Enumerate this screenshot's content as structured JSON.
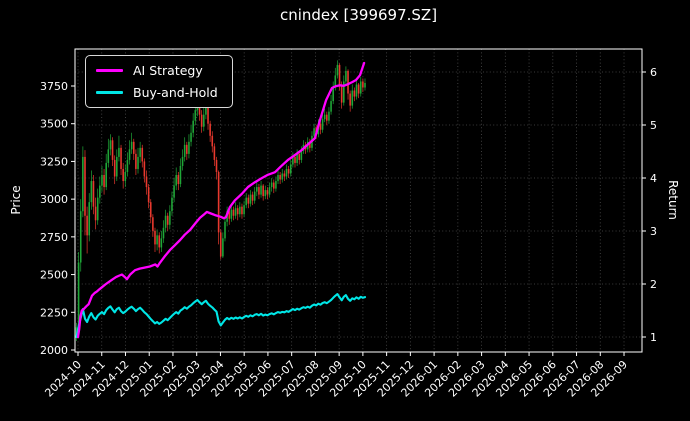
{
  "title": "cnindex [399697.SZ]",
  "legend": {
    "items": [
      {
        "label": "AI Strategy",
        "color": "#ff00ff"
      },
      {
        "label": "Buy-and-Hold",
        "color": "#00e6e6"
      }
    ]
  },
  "axes": {
    "ylabel_left": "Price",
    "ylabel_right": "Return"
  },
  "chart_data": {
    "type": "candlestick+line",
    "title": "cnindex [399697.SZ]",
    "xlabel": "",
    "ylabel_left": "Price",
    "ylabel_right": "Return",
    "grid": true,
    "background": "#000000",
    "text_color": "#ffffff",
    "up_color": "#1fa637",
    "down_color": "#e8392e",
    "price_ticks": [
      2000,
      2250,
      2500,
      2750,
      3000,
      3250,
      3500,
      3750
    ],
    "price_range": [
      1988,
      3996
    ],
    "return_ticks": [
      1,
      2,
      3,
      4,
      5,
      6
    ],
    "return_range": [
      0.72,
      6.43
    ],
    "x_tick_labels": [
      "2024-10",
      "2024-11",
      "2024-12",
      "2025-01",
      "2025-02",
      "2025-03",
      "2025-04",
      "2025-05",
      "2025-06",
      "2025-07",
      "2025-08",
      "2025-09",
      "2025-10",
      "2025-11",
      "2025-12",
      "2026-01",
      "2026-02",
      "2026-03",
      "2026-04",
      "2026-05",
      "2026-06",
      "2026-07",
      "2026-08",
      "2026-09"
    ],
    "data_span_note": "candles cover 2024-10 through mid 2025-10; rest of axis is empty",
    "candles_ohlc": [
      [
        2080,
        2180,
        2060,
        2150
      ],
      [
        2150,
        2650,
        2120,
        2580
      ],
      [
        2580,
        3000,
        2520,
        2920
      ],
      [
        2920,
        3350,
        2880,
        3280
      ],
      [
        3280,
        3325,
        2760,
        2890
      ],
      [
        2890,
        2950,
        2640,
        2760
      ],
      [
        2760,
        3040,
        2720,
        2980
      ],
      [
        2980,
        3190,
        2930,
        3120
      ],
      [
        3120,
        3160,
        2900,
        2950
      ],
      [
        2950,
        3010,
        2800,
        2860
      ],
      [
        2860,
        3070,
        2830,
        3010
      ],
      [
        3010,
        3150,
        2970,
        3090
      ],
      [
        3090,
        3220,
        3050,
        3160
      ],
      [
        3160,
        3200,
        3030,
        3080
      ],
      [
        3080,
        3300,
        3060,
        3240
      ],
      [
        3240,
        3400,
        3210,
        3330
      ],
      [
        3330,
        3430,
        3290,
        3390
      ],
      [
        3390,
        3410,
        3220,
        3260
      ],
      [
        3260,
        3290,
        3100,
        3150
      ],
      [
        3150,
        3330,
        3120,
        3280
      ],
      [
        3280,
        3420,
        3250,
        3340
      ],
      [
        3340,
        3360,
        3160,
        3200
      ],
      [
        3200,
        3240,
        3070,
        3120
      ],
      [
        3120,
        3230,
        3080,
        3180
      ],
      [
        3180,
        3310,
        3150,
        3260
      ],
      [
        3260,
        3390,
        3230,
        3330
      ],
      [
        3330,
        3440,
        3300,
        3380
      ],
      [
        3380,
        3400,
        3260,
        3300
      ],
      [
        3300,
        3330,
        3160,
        3200
      ],
      [
        3200,
        3340,
        3170,
        3280
      ],
      [
        3280,
        3380,
        3240,
        3340
      ],
      [
        3340,
        3360,
        3210,
        3250
      ],
      [
        3250,
        3270,
        3110,
        3150
      ],
      [
        3150,
        3190,
        3030,
        3080
      ],
      [
        3080,
        3100,
        2940,
        2980
      ],
      [
        2980,
        3000,
        2840,
        2880
      ],
      [
        2880,
        2900,
        2750,
        2790
      ],
      [
        2790,
        2810,
        2650,
        2700
      ],
      [
        2700,
        2800,
        2660,
        2760
      ],
      [
        2760,
        2780,
        2640,
        2680
      ],
      [
        2680,
        2790,
        2650,
        2740
      ],
      [
        2740,
        2860,
        2710,
        2810
      ],
      [
        2810,
        2930,
        2780,
        2890
      ],
      [
        2890,
        2910,
        2790,
        2830
      ],
      [
        2830,
        2960,
        2800,
        2920
      ],
      [
        2920,
        3050,
        2890,
        3010
      ],
      [
        3010,
        3140,
        2980,
        3090
      ],
      [
        3090,
        3210,
        3060,
        3160
      ],
      [
        3160,
        3180,
        3060,
        3100
      ],
      [
        3100,
        3270,
        3080,
        3220
      ],
      [
        3220,
        3330,
        3190,
        3280
      ],
      [
        3280,
        3410,
        3250,
        3360
      ],
      [
        3360,
        3380,
        3260,
        3300
      ],
      [
        3300,
        3430,
        3270,
        3380
      ],
      [
        3380,
        3490,
        3350,
        3440
      ],
      [
        3440,
        3570,
        3410,
        3520
      ],
      [
        3520,
        3640,
        3490,
        3590
      ],
      [
        3590,
        3660,
        3550,
        3650
      ],
      [
        3650,
        3655,
        3520,
        3560
      ],
      [
        3560,
        3590,
        3440,
        3480
      ],
      [
        3480,
        3610,
        3450,
        3560
      ],
      [
        3560,
        3650,
        3530,
        3620
      ],
      [
        3620,
        3630,
        3460,
        3500
      ],
      [
        3500,
        3520,
        3380,
        3420
      ],
      [
        3420,
        3450,
        3310,
        3350
      ],
      [
        3350,
        3370,
        3220,
        3260
      ],
      [
        3260,
        3280,
        3130,
        3180
      ],
      [
        3180,
        3190,
        2700,
        2780
      ],
      [
        2780,
        2800,
        2600,
        2620
      ],
      [
        2620,
        2780,
        2610,
        2740
      ],
      [
        2740,
        2890,
        2720,
        2850
      ],
      [
        2850,
        2950,
        2820,
        2920
      ],
      [
        2920,
        2940,
        2830,
        2870
      ],
      [
        2870,
        2970,
        2850,
        2930
      ],
      [
        2930,
        2950,
        2860,
        2890
      ],
      [
        2890,
        2980,
        2870,
        2940
      ],
      [
        2940,
        2960,
        2860,
        2900
      ],
      [
        2900,
        2980,
        2880,
        2950
      ],
      [
        2950,
        2970,
        2870,
        2900
      ],
      [
        2900,
        2990,
        2880,
        2960
      ],
      [
        2960,
        3040,
        2940,
        3010
      ],
      [
        3010,
        3030,
        2940,
        2970
      ],
      [
        2970,
        3060,
        2950,
        3030
      ],
      [
        3030,
        3050,
        2960,
        2990
      ],
      [
        2990,
        3080,
        2970,
        3050
      ],
      [
        3050,
        3110,
        3020,
        3080
      ],
      [
        3080,
        3100,
        3000,
        3030
      ],
      [
        3030,
        3120,
        3010,
        3090
      ],
      [
        3090,
        3100,
        2990,
        3020
      ],
      [
        3020,
        3090,
        3000,
        3060
      ],
      [
        3060,
        3080,
        3000,
        3030
      ],
      [
        3030,
        3110,
        3010,
        3080
      ],
      [
        3080,
        3140,
        3050,
        3110
      ],
      [
        3110,
        3130,
        3040,
        3070
      ],
      [
        3070,
        3150,
        3050,
        3120
      ],
      [
        3120,
        3190,
        3100,
        3160
      ],
      [
        3160,
        3180,
        3100,
        3130
      ],
      [
        3130,
        3200,
        3110,
        3170
      ],
      [
        3170,
        3190,
        3120,
        3150
      ],
      [
        3150,
        3230,
        3130,
        3200
      ],
      [
        3200,
        3220,
        3140,
        3170
      ],
      [
        3170,
        3260,
        3150,
        3230
      ],
      [
        3230,
        3310,
        3210,
        3280
      ],
      [
        3280,
        3300,
        3210,
        3240
      ],
      [
        3240,
        3330,
        3220,
        3300
      ],
      [
        3300,
        3320,
        3230,
        3260
      ],
      [
        3260,
        3350,
        3240,
        3320
      ],
      [
        3320,
        3390,
        3300,
        3360
      ],
      [
        3360,
        3380,
        3300,
        3330
      ],
      [
        3330,
        3410,
        3310,
        3380
      ],
      [
        3380,
        3400,
        3310,
        3340
      ],
      [
        3340,
        3450,
        3320,
        3420
      ],
      [
        3420,
        3500,
        3400,
        3470
      ],
      [
        3470,
        3490,
        3400,
        3430
      ],
      [
        3430,
        3530,
        3410,
        3500
      ],
      [
        3500,
        3520,
        3430,
        3460
      ],
      [
        3460,
        3560,
        3440,
        3530
      ],
      [
        3530,
        3600,
        3510,
        3560
      ],
      [
        3560,
        3580,
        3490,
        3520
      ],
      [
        3520,
        3610,
        3500,
        3580
      ],
      [
        3580,
        3690,
        3560,
        3650
      ],
      [
        3650,
        3780,
        3630,
        3740
      ],
      [
        3740,
        3870,
        3720,
        3820
      ],
      [
        3820,
        3920,
        3800,
        3890
      ],
      [
        3890,
        3900,
        3720,
        3760
      ],
      [
        3760,
        3780,
        3600,
        3640
      ],
      [
        3640,
        3820,
        3620,
        3780
      ],
      [
        3780,
        3880,
        3750,
        3850
      ],
      [
        3850,
        3860,
        3660,
        3700
      ],
      [
        3700,
        3720,
        3580,
        3620
      ],
      [
        3620,
        3760,
        3600,
        3720
      ],
      [
        3720,
        3740,
        3650,
        3680
      ],
      [
        3680,
        3790,
        3660,
        3760
      ],
      [
        3760,
        3770,
        3670,
        3700
      ],
      [
        3700,
        3810,
        3680,
        3780
      ],
      [
        3780,
        3800,
        3710,
        3740
      ],
      [
        3740,
        3800,
        3720,
        3770
      ]
    ],
    "series": [
      {
        "name": "AI Strategy",
        "color": "#ff00ff",
        "axis": "return",
        "points_month_return": [
          [
            0.0,
            1.0
          ],
          [
            0.05,
            1.15
          ],
          [
            0.1,
            1.38
          ],
          [
            0.16,
            1.5
          ],
          [
            0.25,
            1.53
          ],
          [
            0.35,
            1.58
          ],
          [
            0.45,
            1.62
          ],
          [
            0.59,
            1.78
          ],
          [
            0.7,
            1.83
          ],
          [
            0.8,
            1.86
          ],
          [
            0.9,
            1.9
          ],
          [
            1.01,
            1.94
          ],
          [
            1.15,
            1.99
          ],
          [
            1.3,
            2.04
          ],
          [
            1.43,
            2.08
          ],
          [
            1.6,
            2.13
          ],
          [
            1.75,
            2.16
          ],
          [
            1.85,
            2.18
          ],
          [
            2.0,
            2.12
          ],
          [
            2.06,
            2.09
          ],
          [
            2.2,
            2.18
          ],
          [
            2.4,
            2.26
          ],
          [
            2.6,
            2.29
          ],
          [
            2.8,
            2.31
          ],
          [
            3.03,
            2.33
          ],
          [
            3.25,
            2.37
          ],
          [
            3.35,
            2.33
          ],
          [
            3.45,
            2.4
          ],
          [
            3.65,
            2.52
          ],
          [
            3.87,
            2.64
          ],
          [
            4.1,
            2.74
          ],
          [
            4.3,
            2.83
          ],
          [
            4.5,
            2.93
          ],
          [
            4.72,
            3.02
          ],
          [
            4.95,
            3.15
          ],
          [
            5.14,
            3.25
          ],
          [
            5.3,
            3.31
          ],
          [
            5.43,
            3.36
          ],
          [
            5.6,
            3.33
          ],
          [
            5.77,
            3.3
          ],
          [
            6.0,
            3.27
          ],
          [
            6.15,
            3.24
          ],
          [
            6.23,
            3.26
          ],
          [
            6.4,
            3.45
          ],
          [
            6.61,
            3.58
          ],
          [
            6.9,
            3.7
          ],
          [
            7.16,
            3.83
          ],
          [
            7.45,
            3.92
          ],
          [
            7.75,
            4.0
          ],
          [
            8.0,
            4.06
          ],
          [
            8.3,
            4.11
          ],
          [
            8.55,
            4.22
          ],
          [
            8.84,
            4.34
          ],
          [
            9.1,
            4.42
          ],
          [
            9.43,
            4.53
          ],
          [
            9.7,
            4.64
          ],
          [
            9.98,
            4.75
          ],
          [
            10.19,
            5.09
          ],
          [
            10.45,
            5.47
          ],
          [
            10.7,
            5.7
          ],
          [
            10.85,
            5.73
          ],
          [
            11.03,
            5.75
          ],
          [
            11.2,
            5.74
          ],
          [
            11.37,
            5.77
          ],
          [
            11.55,
            5.81
          ],
          [
            11.71,
            5.85
          ],
          [
            11.88,
            5.94
          ],
          [
            12.05,
            6.17
          ]
        ]
      },
      {
        "name": "Buy-and-Hold",
        "color": "#00e6e6",
        "axis": "return",
        "basis": "candle close divided by first close (2150)"
      }
    ]
  }
}
